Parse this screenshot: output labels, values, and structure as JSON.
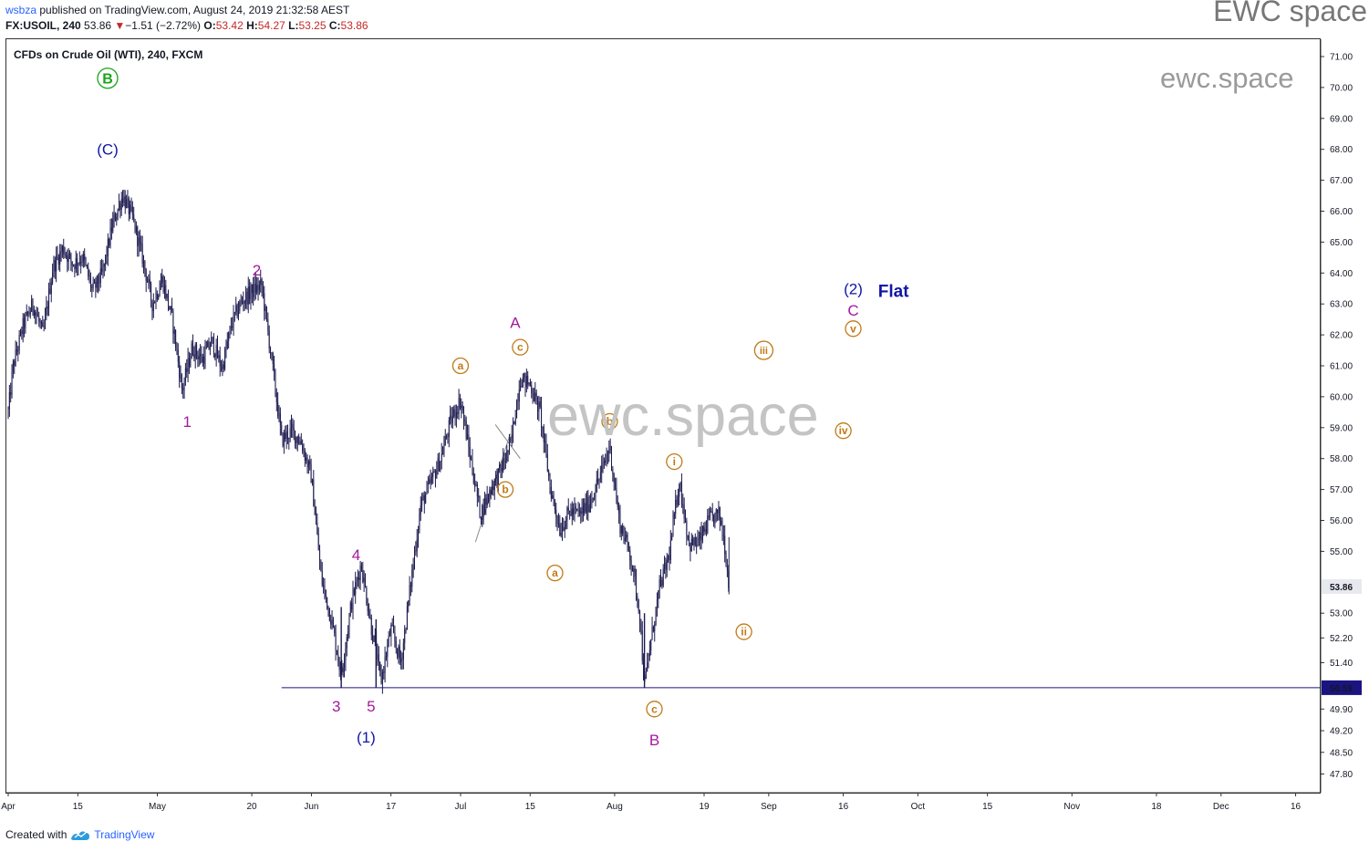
{
  "header": {
    "author": "wsbza",
    "published": " published on TradingView.com, August 24, 2019 21:32:58 AEST",
    "symbol": "FX:USOIL, 240",
    "last": "53.86",
    "arrow": "▼",
    "change": "−1.51 (−2.72%)",
    "o_label": "O:",
    "o": "53.42",
    "h_label": "H:",
    "h": "54.27",
    "l_label": "L:",
    "l": "53.25",
    "c_label": "C:",
    "c": "53.86"
  },
  "brand": "EWC space",
  "watermark_small": "ewc.space",
  "watermark_big": "ewc.space",
  "symbol_title": "CFDs on Crude Oil (WTI), 240, FXCM",
  "footer": {
    "created_with": "Created with",
    "tradingview": "TradingView"
  },
  "colors": {
    "candles": "#1c1a4e",
    "magenta": "#a3199e",
    "blue": "#1016a6",
    "orange": "#c07a17",
    "green": "#1aa31a",
    "grey_line": "#888888"
  },
  "chart_data": {
    "type": "candlestick",
    "symbol": "FX:USOIL",
    "interval": "240",
    "ylim": [
      47.6,
      71.5
    ],
    "y_ticks": [
      "71.00",
      "70.00",
      "69.00",
      "68.00",
      "67.00",
      "66.00",
      "65.00",
      "64.00",
      "63.00",
      "62.00",
      "61.00",
      "60.00",
      "59.00",
      "58.00",
      "57.00",
      "56.00",
      "55.00",
      "53.86",
      "53.00",
      "52.20",
      "51.40",
      "50.59",
      "49.90",
      "49.20",
      "48.50",
      "47.80"
    ],
    "y_tick_values": [
      71.0,
      70.0,
      69.0,
      68.0,
      67.0,
      66.0,
      65.0,
      64.0,
      63.0,
      62.0,
      61.0,
      60.0,
      59.0,
      58.0,
      57.0,
      56.0,
      55.0,
      53.86,
      53.0,
      52.2,
      51.4,
      50.59,
      49.9,
      49.2,
      48.5,
      47.8
    ],
    "last_price_label": "53.86",
    "support_price_label": "50.59",
    "x_ticks": [
      {
        "label": "Apr",
        "date": "2019-04-01"
      },
      {
        "label": "15",
        "date": "2019-04-15"
      },
      {
        "label": "May",
        "date": "2019-05-01"
      },
      {
        "label": "20",
        "date": "2019-05-20"
      },
      {
        "label": "Jun",
        "date": "2019-06-01"
      },
      {
        "label": "17",
        "date": "2019-06-17"
      },
      {
        "label": "Jul",
        "date": "2019-07-01"
      },
      {
        "label": "15",
        "date": "2019-07-15"
      },
      {
        "label": "Aug",
        "date": "2019-08-01"
      },
      {
        "label": "19",
        "date": "2019-08-19"
      },
      {
        "label": "Sep",
        "date": "2019-09-01"
      },
      {
        "label": "16",
        "date": "2019-09-16"
      },
      {
        "label": "Oct",
        "date": "2019-10-01"
      },
      {
        "label": "15",
        "date": "2019-10-15"
      },
      {
        "label": "Nov",
        "date": "2019-11-01"
      },
      {
        "label": "18",
        "date": "2019-11-18"
      },
      {
        "label": "Dec",
        "date": "2019-12-01"
      },
      {
        "label": "16",
        "date": "2019-12-16"
      }
    ],
    "price_path": [
      [
        "2019-04-01",
        59.5
      ],
      [
        "2019-04-02",
        61.0
      ],
      [
        "2019-04-04",
        62.3
      ],
      [
        "2019-04-06",
        63.0
      ],
      [
        "2019-04-08",
        62.0
      ],
      [
        "2019-04-10",
        64.2
      ],
      [
        "2019-04-12",
        64.8
      ],
      [
        "2019-04-14",
        64.3
      ],
      [
        "2019-04-16",
        64.5
      ],
      [
        "2019-04-18",
        63.4
      ],
      [
        "2019-04-20",
        64.0
      ],
      [
        "2019-04-22",
        65.6
      ],
      [
        "2019-04-24",
        66.5
      ],
      [
        "2019-04-26",
        65.8
      ],
      [
        "2019-04-28",
        64.5
      ],
      [
        "2019-04-30",
        63.0
      ],
      [
        "2019-05-02",
        63.8
      ],
      [
        "2019-05-04",
        62.5
      ],
      [
        "2019-05-06",
        60.2
      ],
      [
        "2019-05-08",
        61.6
      ],
      [
        "2019-05-10",
        61.2
      ],
      [
        "2019-05-12",
        61.8
      ],
      [
        "2019-05-14",
        60.9
      ],
      [
        "2019-05-16",
        62.4
      ],
      [
        "2019-05-18",
        63.1
      ],
      [
        "2019-05-20",
        63.4
      ],
      [
        "2019-05-22",
        63.6
      ],
      [
        "2019-05-24",
        61.2
      ],
      [
        "2019-05-26",
        58.6
      ],
      [
        "2019-05-28",
        58.9
      ],
      [
        "2019-05-30",
        58.5
      ],
      [
        "2019-06-01",
        57.4
      ],
      [
        "2019-06-03",
        54.1
      ],
      [
        "2019-06-05",
        52.8
      ],
      [
        "2019-06-07",
        51.0
      ],
      [
        "2019-06-09",
        53.3
      ],
      [
        "2019-06-11",
        54.6
      ],
      [
        "2019-06-13",
        52.6
      ],
      [
        "2019-06-15",
        50.8
      ],
      [
        "2019-06-17",
        52.5
      ],
      [
        "2019-06-19",
        51.4
      ],
      [
        "2019-06-21",
        54.0
      ],
      [
        "2019-06-23",
        56.5
      ],
      [
        "2019-06-25",
        57.2
      ],
      [
        "2019-06-27",
        58.0
      ],
      [
        "2019-06-29",
        59.2
      ],
      [
        "2019-07-01",
        59.9
      ],
      [
        "2019-07-03",
        58.0
      ],
      [
        "2019-07-05",
        56.2
      ],
      [
        "2019-07-07",
        57.0
      ],
      [
        "2019-07-09",
        57.6
      ],
      [
        "2019-07-11",
        58.4
      ],
      [
        "2019-07-13",
        60.6
      ],
      [
        "2019-07-15",
        60.4
      ],
      [
        "2019-07-17",
        59.5
      ],
      [
        "2019-07-19",
        57.1
      ],
      [
        "2019-07-21",
        55.7
      ],
      [
        "2019-07-23",
        56.3
      ],
      [
        "2019-07-25",
        56.2
      ],
      [
        "2019-07-27",
        56.6
      ],
      [
        "2019-07-29",
        57.4
      ],
      [
        "2019-07-31",
        58.4
      ],
      [
        "2019-08-02",
        55.9
      ],
      [
        "2019-08-04",
        55.0
      ],
      [
        "2019-08-06",
        53.1
      ],
      [
        "2019-08-07",
        50.6
      ],
      [
        "2019-08-08",
        51.8
      ],
      [
        "2019-08-10",
        53.8
      ],
      [
        "2019-08-12",
        54.9
      ],
      [
        "2019-08-14",
        57.3
      ],
      [
        "2019-08-16",
        55.2
      ],
      [
        "2019-08-18",
        55.3
      ],
      [
        "2019-08-20",
        56.0
      ],
      [
        "2019-08-22",
        56.2
      ],
      [
        "2019-08-23",
        55.4
      ],
      [
        "2019-08-24",
        53.86
      ]
    ],
    "support_line": {
      "price": 50.59,
      "from": "2019-05-26",
      "to": "2019-12-30"
    },
    "trendline": [
      [
        "2019-07-04",
        55.3
      ],
      [
        "2019-07-11",
        58.8
      ]
    ],
    "wave_labels": [
      {
        "text": "B",
        "date": "2019-04-21",
        "price": 70.3,
        "color": "green",
        "circled": true
      },
      {
        "text": "(C)",
        "date": "2019-04-21",
        "price": 68.0,
        "color": "blue"
      },
      {
        "text": "1",
        "date": "2019-05-07",
        "price": 59.2,
        "color": "magenta"
      },
      {
        "text": "2",
        "date": "2019-05-21",
        "price": 64.1,
        "color": "magenta"
      },
      {
        "text": "3",
        "date": "2019-06-06",
        "price": 50.0,
        "color": "magenta"
      },
      {
        "text": "4",
        "date": "2019-06-10",
        "price": 54.9,
        "color": "magenta"
      },
      {
        "text": "5",
        "date": "2019-06-13",
        "price": 50.0,
        "color": "magenta"
      },
      {
        "text": "(1)",
        "date": "2019-06-12",
        "price": 49.0,
        "color": "blue"
      },
      {
        "text": "a",
        "date": "2019-07-01",
        "price": 61.0,
        "color": "orange",
        "circled": true
      },
      {
        "text": "b",
        "date": "2019-07-10",
        "price": 57.0,
        "color": "orange",
        "circled": true
      },
      {
        "text": "A",
        "date": "2019-07-12",
        "price": 62.4,
        "color": "magenta"
      },
      {
        "text": "c",
        "date": "2019-07-13",
        "price": 61.6,
        "color": "orange",
        "circled": true
      },
      {
        "text": "a",
        "date": "2019-07-20",
        "price": 54.3,
        "color": "orange",
        "circled": true
      },
      {
        "text": "b",
        "date": "2019-07-31",
        "price": 59.2,
        "color": "orange",
        "circled": true
      },
      {
        "text": "c",
        "date": "2019-08-09",
        "price": 49.9,
        "color": "orange",
        "circled": true
      },
      {
        "text": "B",
        "date": "2019-08-09",
        "price": 48.9,
        "color": "magenta"
      },
      {
        "text": "i",
        "date": "2019-08-13",
        "price": 57.9,
        "color": "orange",
        "circled": true
      },
      {
        "text": "ii",
        "date": "2019-08-27",
        "price": 52.4,
        "color": "orange",
        "circled": true
      },
      {
        "text": "iii",
        "date": "2019-08-31",
        "price": 61.5,
        "color": "orange",
        "circled": true
      },
      {
        "text": "iv",
        "date": "2019-09-16",
        "price": 58.9,
        "color": "orange",
        "circled": true
      },
      {
        "text": "(2)",
        "date": "2019-09-18",
        "price": 63.5,
        "color": "blue"
      },
      {
        "text": "C",
        "date": "2019-09-18",
        "price": 62.8,
        "color": "magenta"
      },
      {
        "text": "v",
        "date": "2019-09-18",
        "price": 62.2,
        "color": "orange",
        "circled": true
      }
    ],
    "annotations": [
      {
        "text": "Flat",
        "date": "2019-09-23",
        "price": 63.4,
        "color": "blue"
      }
    ]
  }
}
